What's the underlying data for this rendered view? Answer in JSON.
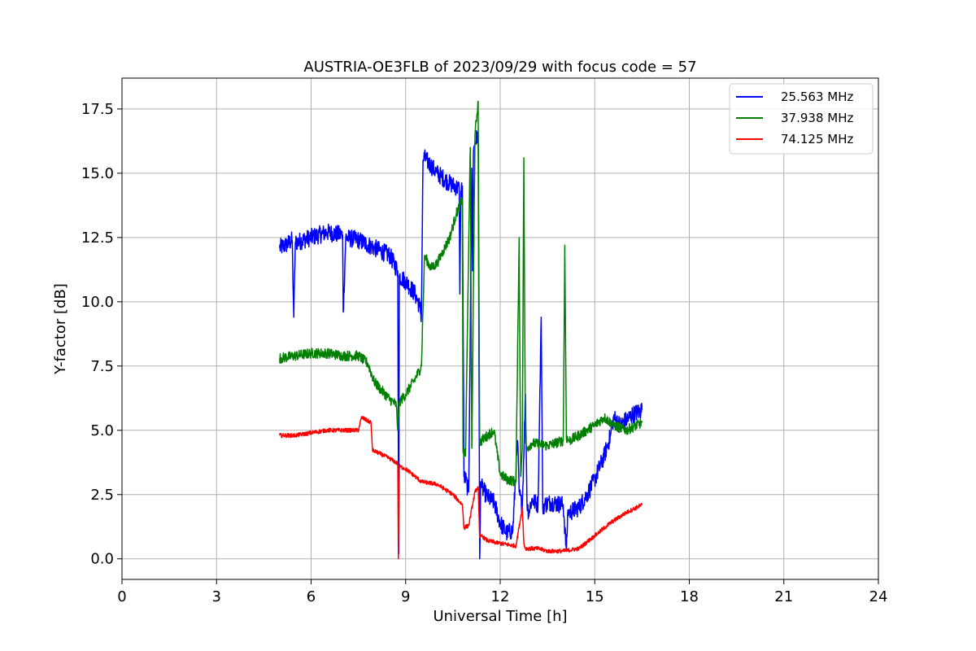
{
  "chart_data": {
    "type": "line",
    "title": "AUSTRIA-OE3FLB of 2023/09/29 with focus code = 57",
    "xlabel": "Universal Time [h]",
    "ylabel": "Y-factor [dB]",
    "xlim": [
      0,
      24
    ],
    "ylim": [
      -0.8,
      18.7
    ],
    "xticks": [
      0,
      3,
      6,
      9,
      12,
      15,
      18,
      21,
      24
    ],
    "yticks": [
      0.0,
      2.5,
      5.0,
      7.5,
      10.0,
      12.5,
      15.0,
      17.5
    ],
    "xtick_labels": [
      "0",
      "3",
      "6",
      "9",
      "12",
      "15",
      "18",
      "21",
      "24"
    ],
    "ytick_labels": [
      "0.0",
      "2.5",
      "5.0",
      "7.5",
      "10.0",
      "12.5",
      "15.0",
      "17.5"
    ],
    "grid": true,
    "legend_position": "top-right",
    "series": [
      {
        "name": "25.563 MHz",
        "color": "#0000ff",
        "noise": 0.35,
        "x": [
          5.0,
          5.2,
          5.4,
          5.45,
          5.5,
          6.0,
          6.5,
          7.0,
          7.02,
          7.1,
          7.5,
          8.0,
          8.5,
          8.75,
          8.78,
          8.8,
          9.0,
          9.3,
          9.45,
          9.5,
          9.55,
          9.6,
          9.8,
          10.0,
          10.4,
          10.7,
          10.72,
          10.75,
          10.8,
          10.85,
          10.9,
          11.0,
          11.1,
          11.12,
          11.15,
          11.2,
          11.3,
          11.35,
          11.38,
          11.4,
          11.6,
          11.8,
          12.0,
          12.2,
          12.4,
          12.55,
          12.6,
          12.7,
          12.8,
          12.85,
          12.9,
          13.0,
          13.2,
          13.3,
          13.35,
          13.4,
          13.6,
          14.0,
          14.1,
          14.15,
          14.2,
          14.5,
          14.8,
          15.0,
          15.3,
          15.5,
          15.6,
          15.8,
          16.0,
          16.2,
          16.5
        ],
        "y": [
          12.1,
          12.2,
          12.4,
          9.4,
          12.3,
          12.5,
          12.7,
          12.6,
          9.6,
          12.5,
          12.4,
          12.1,
          11.8,
          11.2,
          0.2,
          11.0,
          10.8,
          10.3,
          9.8,
          9.4,
          15.5,
          15.6,
          15.3,
          15.0,
          14.6,
          14.4,
          10.3,
          14.3,
          14.5,
          3.2,
          3.1,
          2.6,
          15.2,
          11.2,
          15.8,
          16.2,
          16.5,
          0.0,
          3.0,
          2.8,
          2.4,
          2.2,
          1.4,
          1.0,
          1.1,
          4.6,
          2.6,
          2.0,
          6.4,
          2.2,
          1.8,
          2.3,
          2.1,
          9.4,
          2.0,
          2.1,
          2.2,
          2.1,
          0.3,
          1.9,
          1.8,
          2.0,
          2.6,
          3.1,
          4.0,
          4.8,
          5.5,
          5.2,
          5.4,
          5.6,
          5.8
        ]
      },
      {
        "name": "37.938 MHz",
        "color": "#008000",
        "noise": 0.2,
        "x": [
          5.0,
          5.5,
          6.0,
          6.5,
          7.0,
          7.5,
          7.8,
          8.0,
          8.2,
          8.5,
          8.7,
          8.75,
          8.8,
          9.0,
          9.3,
          9.5,
          9.6,
          9.8,
          10.0,
          10.2,
          10.4,
          10.6,
          10.8,
          10.82,
          10.9,
          11.0,
          11.05,
          11.1,
          11.2,
          11.3,
          11.35,
          11.4,
          11.6,
          11.8,
          12.0,
          12.2,
          12.5,
          12.6,
          12.65,
          12.7,
          12.75,
          12.8,
          12.85,
          13.0,
          13.5,
          14.0,
          14.05,
          14.1,
          14.2,
          14.5,
          15.0,
          15.3,
          15.6,
          16.0,
          16.5
        ],
        "y": [
          7.8,
          7.9,
          8.0,
          8.0,
          7.9,
          7.9,
          7.6,
          6.9,
          6.6,
          6.2,
          6.0,
          5.0,
          6.1,
          6.4,
          7.0,
          7.5,
          11.8,
          11.3,
          11.5,
          12.0,
          12.5,
          13.4,
          14.0,
          4.2,
          4.0,
          12.2,
          16.0,
          4.3,
          16.5,
          17.8,
          4.5,
          4.6,
          4.8,
          5.0,
          3.3,
          3.1,
          3.0,
          12.5,
          3.2,
          4.3,
          15.6,
          4.5,
          4.3,
          4.5,
          4.4,
          4.6,
          12.2,
          4.7,
          4.6,
          4.8,
          5.2,
          5.5,
          5.2,
          5.0,
          5.3
        ]
      },
      {
        "name": "74.125 MHz",
        "color": "#ff0000",
        "noise": 0.08,
        "x": [
          5.0,
          5.5,
          6.0,
          6.5,
          7.0,
          7.5,
          7.6,
          7.9,
          7.95,
          8.0,
          8.5,
          8.75,
          8.77,
          8.8,
          9.0,
          9.5,
          10.0,
          10.5,
          10.8,
          10.85,
          11.0,
          11.2,
          11.3,
          11.35,
          11.4,
          11.6,
          12.0,
          12.5,
          12.7,
          12.75,
          12.8,
          13.2,
          13.5,
          14.0,
          14.5,
          15.0,
          15.5,
          16.0,
          16.5
        ],
        "y": [
          4.8,
          4.8,
          4.9,
          5.0,
          5.0,
          5.0,
          5.5,
          5.3,
          4.2,
          4.2,
          3.9,
          3.7,
          0.0,
          3.6,
          3.5,
          3.0,
          2.9,
          2.5,
          2.1,
          1.2,
          1.3,
          2.6,
          2.8,
          0.8,
          0.9,
          0.7,
          0.6,
          0.5,
          2.0,
          0.6,
          0.4,
          0.4,
          0.3,
          0.3,
          0.4,
          0.9,
          1.4,
          1.8,
          2.1
        ]
      }
    ]
  }
}
